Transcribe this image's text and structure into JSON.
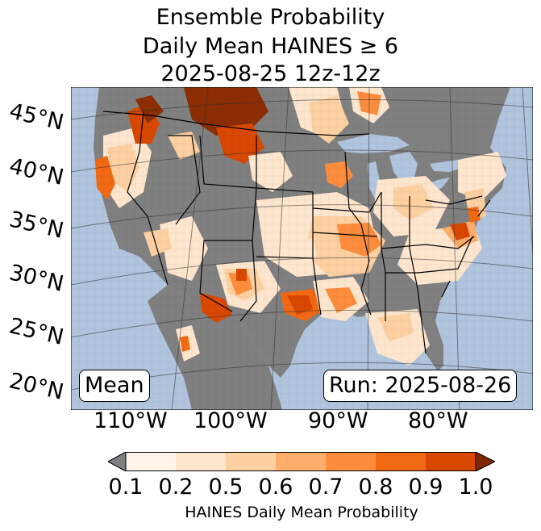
{
  "title": {
    "line1": "Ensemble Probability",
    "line2": "Daily Mean HAINES ≥ 6",
    "line3": "2025-08-25 12z-12z"
  },
  "map": {
    "lat_labels": [
      "45°N",
      "40°N",
      "35°N",
      "30°N",
      "25°N",
      "20°N"
    ],
    "lon_labels": [
      "110°W",
      "100°W",
      "90°W",
      "80°W"
    ],
    "mean_label": "Mean",
    "run_label": "Run: 2025-08-26",
    "colors": {
      "ocean": "#b0c4de",
      "no_data": "#808080",
      "low": "#fff5eb"
    }
  },
  "colorbar": {
    "ticks": [
      "0.1",
      "0.2",
      "0.5",
      "0.6",
      "0.7",
      "0.8",
      "0.9",
      "1.0"
    ],
    "colors": [
      "#fff5eb",
      "#fee6ce",
      "#fdd0a2",
      "#fdae6b",
      "#fd8d3c",
      "#f16913",
      "#d94801",
      "#8c2d04"
    ],
    "under_color": "#808080",
    "over_color": "#7f2704",
    "label": "HAINES Daily Mean Probability"
  }
}
